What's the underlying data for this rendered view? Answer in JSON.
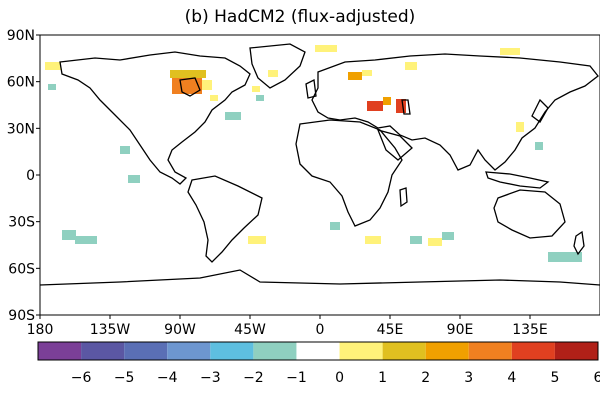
{
  "title": "(b) HadCM2 (flux-adjusted)",
  "lat_ticks": [
    "90N",
    "60N",
    "30N",
    "0",
    "30S",
    "60S",
    "90S"
  ],
  "lon_ticks": [
    "180",
    "135W",
    "90W",
    "45W",
    "0",
    "45E",
    "90E",
    "135E"
  ],
  "colorbar": {
    "labels": [
      "-6",
      "-5",
      "-4",
      "-3",
      "-2",
      "-1",
      "0",
      "1",
      "2",
      "3",
      "4",
      "5",
      "6"
    ],
    "colors": [
      "#7b3f97",
      "#5b57a3",
      "#5a6fb5",
      "#6d96cf",
      "#5ebfe0",
      "#8fd0c0",
      "#ffffff",
      "#fff27a",
      "#e0c020",
      "#f0a000",
      "#f08020",
      "#e04020",
      "#b02018"
    ]
  }
}
